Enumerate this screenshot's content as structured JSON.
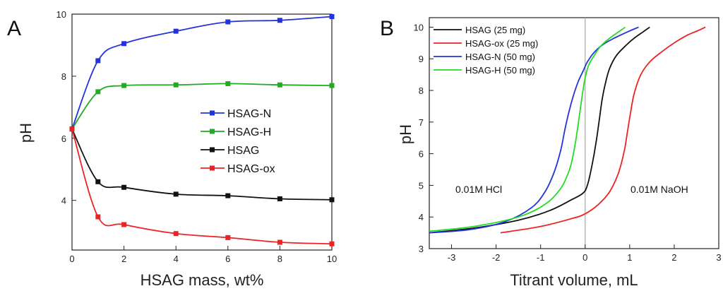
{
  "panels": [
    {
      "label": "A",
      "chart_data": {
        "type": "scatter",
        "xlabel": "HSAG mass, wt%",
        "ylabel": "pH",
        "xlim": [
          0,
          10
        ],
        "ylim": [
          2.4,
          10
        ],
        "xticks": [
          0,
          2,
          4,
          6,
          8,
          10
        ],
        "yticks": [
          4,
          6,
          8,
          10
        ],
        "legend_position": "center-right",
        "series": [
          {
            "name": "HSAG-N",
            "color": "#2233dd",
            "x": [
              0,
              1,
              2,
              4,
              6,
              8,
              10
            ],
            "y": [
              6.3,
              8.5,
              9.05,
              9.45,
              9.75,
              9.8,
              9.92
            ]
          },
          {
            "name": "HSAG-H",
            "color": "#22aa22",
            "x": [
              0,
              1,
              2,
              4,
              6,
              8,
              10
            ],
            "y": [
              6.3,
              7.5,
              7.7,
              7.72,
              7.76,
              7.72,
              7.7
            ]
          },
          {
            "name": "HSAG",
            "color": "#111111",
            "x": [
              0,
              1,
              2,
              4,
              6,
              8,
              10
            ],
            "y": [
              6.3,
              4.6,
              4.42,
              4.2,
              4.15,
              4.05,
              4.02
            ]
          },
          {
            "name": "HSAG-ox",
            "color": "#ee2222",
            "x": [
              0,
              1,
              2,
              4,
              6,
              8,
              10
            ],
            "y": [
              6.3,
              3.47,
              3.22,
              2.93,
              2.8,
              2.65,
              2.6
            ]
          }
        ]
      }
    },
    {
      "label": "B",
      "chart_data": {
        "type": "line",
        "xlabel": "Titrant volume, mL",
        "ylabel": "pH",
        "xlim": [
          -3.5,
          3
        ],
        "ylim": [
          3,
          10.3
        ],
        "xticks": [
          -3,
          -2,
          -1,
          0,
          1,
          2,
          3
        ],
        "yticks": [
          3,
          4,
          5,
          6,
          7,
          8,
          9,
          10
        ],
        "legend_position": "top-left",
        "annotations": [
          "0.01M HCl",
          "0.01M NaOH"
        ],
        "series": [
          {
            "name": "HSAG (25 mg)",
            "color": "#111111",
            "x": [
              -3.5,
              -2.5,
              -1.5,
              -0.8,
              -0.3,
              -0.05,
              0.05,
              0.15,
              0.25,
              0.32,
              0.38,
              0.45,
              0.55,
              0.7,
              0.9,
              1.1,
              1.3,
              1.45
            ],
            "y": [
              3.5,
              3.65,
              3.9,
              4.2,
              4.55,
              4.75,
              5.0,
              5.6,
              6.4,
              7.1,
              7.7,
              8.2,
              8.7,
              9.1,
              9.4,
              9.65,
              9.85,
              10.0
            ]
          },
          {
            "name": "HSAG-ox (25 mg)",
            "color": "#ee2222",
            "x": [
              -1.9,
              -1.0,
              -0.3,
              0.0,
              0.3,
              0.55,
              0.75,
              0.88,
              0.95,
              1.02,
              1.1,
              1.25,
              1.45,
              1.7,
              2.0,
              2.3,
              2.55,
              2.7
            ],
            "y": [
              3.5,
              3.7,
              3.95,
              4.1,
              4.4,
              4.8,
              5.4,
              6.1,
              6.7,
              7.3,
              7.9,
              8.5,
              8.9,
              9.2,
              9.5,
              9.75,
              9.9,
              10.0
            ]
          },
          {
            "name": "HSAG-N (50 mg)",
            "color": "#2233dd",
            "x": [
              -3.5,
              -2.6,
              -1.8,
              -1.2,
              -0.9,
              -0.7,
              -0.55,
              -0.45,
              -0.35,
              -0.25,
              -0.15,
              -0.05,
              0.05,
              0.2,
              0.4,
              0.65,
              0.95,
              1.2
            ],
            "y": [
              3.5,
              3.6,
              3.85,
              4.3,
              4.8,
              5.4,
              6.1,
              6.8,
              7.4,
              7.9,
              8.3,
              8.6,
              8.9,
              9.2,
              9.45,
              9.65,
              9.85,
              10.0
            ]
          },
          {
            "name": "HSAG-H (50 mg)",
            "color": "#22dd22",
            "x": [
              -3.5,
              -2.5,
              -1.5,
              -0.9,
              -0.55,
              -0.35,
              -0.25,
              -0.18,
              -0.12,
              -0.06,
              0.0,
              0.08,
              0.2,
              0.35,
              0.55,
              0.75,
              0.9
            ],
            "y": [
              3.55,
              3.7,
              4.0,
              4.4,
              4.9,
              5.5,
              6.1,
              6.7,
              7.3,
              7.9,
              8.4,
              8.8,
              9.1,
              9.4,
              9.65,
              9.85,
              10.0
            ]
          }
        ]
      }
    }
  ]
}
